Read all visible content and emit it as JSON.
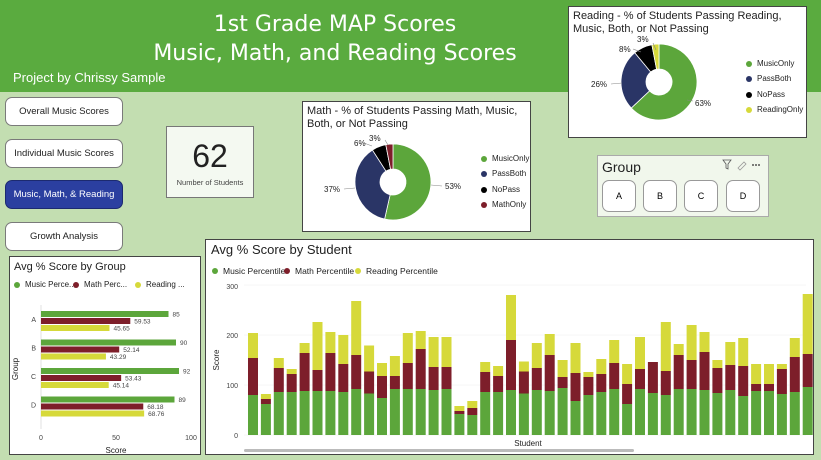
{
  "header": {
    "title_line1": "1st Grade MAP Scores",
    "title_line2": "Music, Math, and Reading Scores",
    "byline": "Project by Chrissy Sample"
  },
  "nav": [
    {
      "label": "Overall Music Scores",
      "active": false
    },
    {
      "label": "Individual Music Scores",
      "active": false
    },
    {
      "label": "Music, Math, & Reading",
      "active": true
    },
    {
      "label": "Growth Analysis",
      "active": false
    }
  ],
  "kpi": {
    "value": "62",
    "label": "Number of Students"
  },
  "colors": {
    "music": "#5ca63b",
    "math": "#7d1e2a",
    "reading": "#d6d93a",
    "passboth": "#2a3566",
    "nopass": "#000000",
    "header": "#5aab3f",
    "background": "#c3deb1"
  },
  "math_pie": {
    "title": "Math - % of Students Passing Math, Music, Both, or Not Passing",
    "labels": [
      "53%",
      "37%",
      "6%",
      "3%"
    ],
    "legend": [
      "MusicOnly",
      "PassBoth",
      "NoPass",
      "MathOnly"
    ]
  },
  "reading_pie": {
    "title": "Reading - % of Students Passing Reading, Music, Both, or Not Passing",
    "labels": [
      "63%",
      "26%",
      "8%",
      "3%"
    ],
    "legend": [
      "MusicOnly",
      "PassBoth",
      "NoPass",
      "ReadingOnly"
    ]
  },
  "slicer": {
    "title": "Group",
    "options": [
      "A",
      "B",
      "C",
      "D"
    ]
  },
  "group_chart": {
    "title": "Avg % Score by Group",
    "legend": [
      "Music Perce...",
      "Math Perc...",
      "Reading ..."
    ],
    "ylabel": "Group",
    "xlabel": "Score",
    "xticks": [
      "0",
      "50",
      "100"
    ]
  },
  "student_chart": {
    "title": "Avg % Score by Student",
    "legend": [
      "Music Percentile",
      "Math Percentile",
      "Reading Percentile"
    ],
    "ylabel": "Score",
    "xlabel": "Student",
    "yticks": [
      "300",
      "200",
      "100",
      "0"
    ]
  },
  "chart_data": [
    {
      "type": "pie",
      "title": "Math - % of Students Passing Math, Music, Both, or Not Passing",
      "categories": [
        "MusicOnly",
        "PassBoth",
        "NoPass",
        "MathOnly"
      ],
      "values": [
        53,
        37,
        6,
        3
      ]
    },
    {
      "type": "pie",
      "title": "Reading - % of Students Passing Reading, Music, Both, or Not Passing",
      "categories": [
        "MusicOnly",
        "PassBoth",
        "NoPass",
        "ReadingOnly"
      ],
      "values": [
        63,
        26,
        8,
        3
      ]
    },
    {
      "type": "bar",
      "title": "Avg % Score by Group",
      "orientation": "horizontal",
      "categories": [
        "A",
        "B",
        "C",
        "D"
      ],
      "series": [
        {
          "name": "Music Percentile",
          "values": [
            85,
            90,
            92,
            89
          ],
          "labels": [
            "85",
            "90",
            "92",
            "89"
          ]
        },
        {
          "name": "Math Percentile",
          "values": [
            59.53,
            52.14,
            53.43,
            68.18
          ],
          "labels": [
            "59.53",
            "52.14",
            "53.43",
            "68.18"
          ]
        },
        {
          "name": "Reading Percentile",
          "values": [
            45.65,
            43.29,
            45.14,
            68.76
          ],
          "labels": [
            "45.65",
            "43.29",
            "45.14",
            "68.76"
          ]
        }
      ],
      "xlabel": "Score",
      "ylabel": "Group",
      "xlim": [
        0,
        100
      ]
    },
    {
      "type": "bar",
      "stacked": true,
      "title": "Avg % Score by Student",
      "series": [
        {
          "name": "Music Percentile",
          "values": [
            80,
            62,
            86,
            86,
            88,
            88,
            88,
            86,
            92,
            83,
            74,
            92,
            92,
            92,
            90,
            92,
            42,
            40,
            86,
            86,
            90,
            83,
            90,
            88,
            94,
            68,
            80,
            86,
            92,
            62,
            92,
            84,
            80,
            92,
            92,
            90,
            84,
            90,
            78,
            88,
            88,
            82,
            86,
            96,
            76,
            88,
            66,
            70,
            88,
            94,
            92,
            84,
            94,
            80,
            74,
            82,
            92,
            88,
            82,
            70,
            90,
            98
          ]
        },
        {
          "name": "Math Percentile",
          "values": [
            74,
            10,
            48,
            36,
            76,
            42,
            76,
            56,
            68,
            44,
            44,
            26,
            52,
            80,
            46,
            44,
            6,
            14,
            40,
            32,
            100,
            44,
            44,
            72,
            22,
            56,
            36,
            36,
            52,
            40,
            40,
            62,
            48,
            68,
            58,
            76,
            50,
            50,
            60,
            14,
            14,
            50,
            70,
            66,
            50,
            32,
            70,
            54,
            46,
            50,
            66,
            56,
            74,
            56,
            54,
            56,
            32,
            50,
            26,
            68,
            58,
            60
          ]
        },
        {
          "name": "Reading Percentile",
          "values": [
            50,
            10,
            20,
            10,
            20,
            96,
            42,
            58,
            108,
            52,
            26,
            40,
            60,
            36,
            60,
            60,
            10,
            14,
            20,
            20,
            90,
            20,
            50,
            42,
            34,
            60,
            10,
            30,
            46,
            40,
            64,
            0,
            98,
            22,
            70,
            40,
            16,
            46,
            56,
            40,
            40,
            10,
            38,
            120,
            20,
            14,
            62,
            50,
            50,
            54,
            42,
            32,
            70,
            50,
            30,
            10,
            16,
            22,
            10,
            34,
            8,
            68
          ]
        }
      ],
      "xlabel": "Student",
      "ylabel": "Score",
      "ylim": [
        0,
        300
      ]
    }
  ]
}
